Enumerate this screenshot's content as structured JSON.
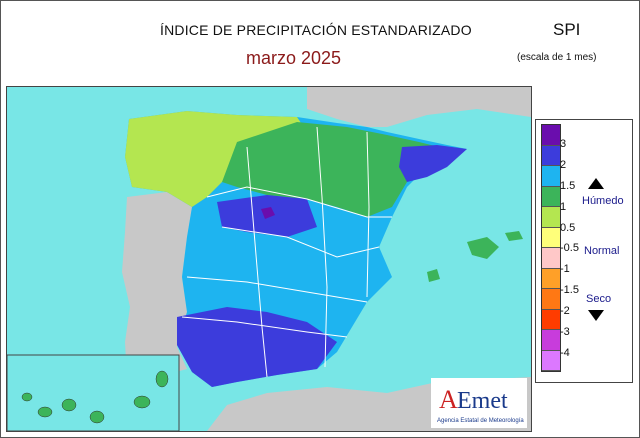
{
  "header": {
    "title": "ÍNDICE DE PRECIPITACIÓN ESTANDARIZADO",
    "subtitle": "marzo  2025",
    "index_name": "SPI",
    "scale_note": "(escala de 1 mes)"
  },
  "legend": {
    "classes": [
      {
        "label": "3",
        "color": "#6a0dad"
      },
      {
        "label": "2",
        "color": "#3c3cdc"
      },
      {
        "label": "1.5",
        "color": "#1eb4f0"
      },
      {
        "label": "1",
        "color": "#3cb45a"
      },
      {
        "label": "0.5",
        "color": "#b4e650"
      },
      {
        "label": "-0.5",
        "color": "#ffff7a"
      },
      {
        "label": "-1",
        "color": "#ffc8c8"
      },
      {
        "label": "-1.5",
        "color": "#ffa028"
      },
      {
        "label": "-2",
        "color": "#ff7814"
      },
      {
        "label": "-3",
        "color": "#ff3c00"
      },
      {
        "label": "-4",
        "color": "#c83cdc"
      },
      {
        "label": "",
        "color": "#dc78ff"
      }
    ],
    "wet_label": "Húmedo",
    "normal_label": "Normal",
    "dry_label": "Seco"
  },
  "map": {
    "sea_color": "#78e6e6",
    "land_color": "#c8c8c8",
    "boundary_color": "#ffffff"
  },
  "logo": {
    "name": "AEmet",
    "caption": "Agencia Estatal de Meteorología"
  }
}
